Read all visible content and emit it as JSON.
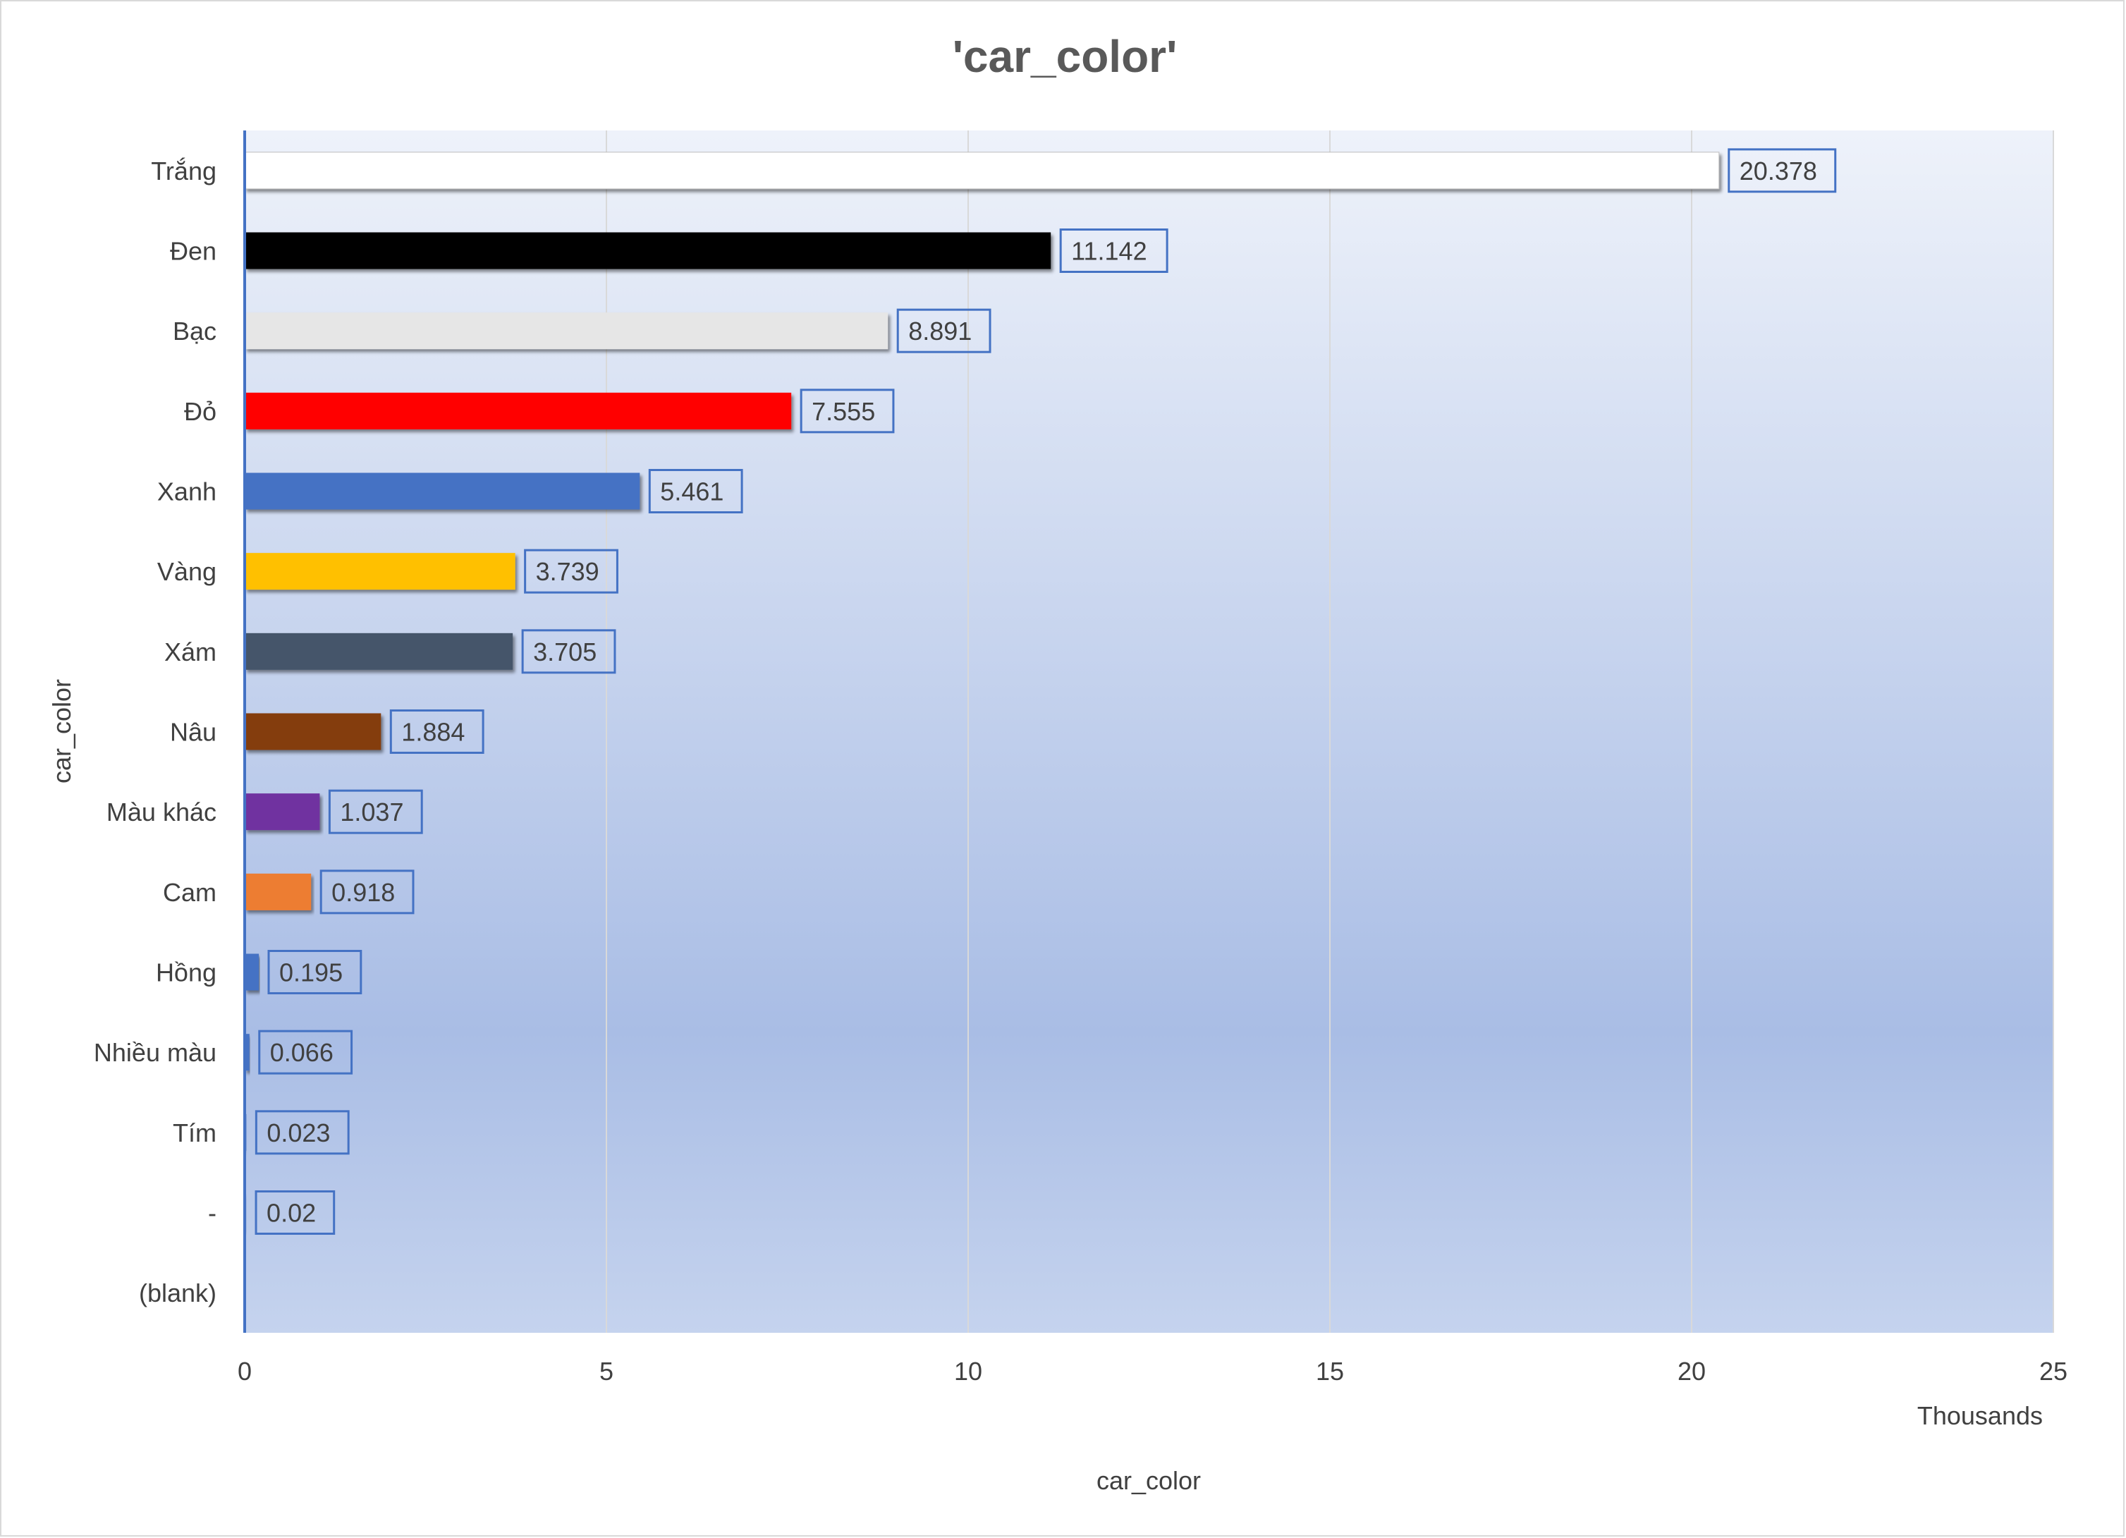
{
  "chart_data": {
    "type": "bar",
    "orientation": "horizontal",
    "title": "'car_color'",
    "xlabel": "car_color",
    "ylabel": "car_color",
    "x_units_label": "Thousands",
    "xlim": [
      0,
      25
    ],
    "x_ticks": [
      0,
      5,
      10,
      15,
      20,
      25
    ],
    "grid": true,
    "legend": "none",
    "categories": [
      "Trắng",
      "Đen",
      "Bạc",
      "Đỏ",
      "Xanh",
      "Vàng",
      "Xám",
      "Nâu",
      "Màu khác",
      "Cam",
      "Hồng",
      "Nhiều màu",
      "Tím",
      "-",
      "(blank)"
    ],
    "values": [
      20.378,
      11.142,
      8.891,
      7.555,
      5.461,
      3.739,
      3.705,
      1.884,
      1.037,
      0.918,
      0.195,
      0.066,
      0.023,
      0.02,
      null
    ],
    "data_labels": [
      "20.378",
      "11.142",
      "8.891",
      "7.555",
      "5.461",
      "3.739",
      "3.705",
      "1.884",
      "1.037",
      "0.918",
      "0.195",
      "0.066",
      "0.023",
      "0.02",
      ""
    ],
    "bar_colors": [
      "#ffffff",
      "#000000",
      "#e6e6e6",
      "#ff0000",
      "#4472c4",
      "#ffc000",
      "#44546a",
      "#843c0c",
      "#7030a0",
      "#ed7d31",
      "#4472c4",
      "#4472c4",
      "#4472c4",
      "#4472c4",
      "#4472c4"
    ]
  },
  "colors": {
    "background_top": "#eef2fa",
    "background_bottom": "#a9bde5",
    "axis_line": "#4472c4",
    "label_border": "#4472c4",
    "text": "#404040",
    "title_text": "#595959"
  }
}
